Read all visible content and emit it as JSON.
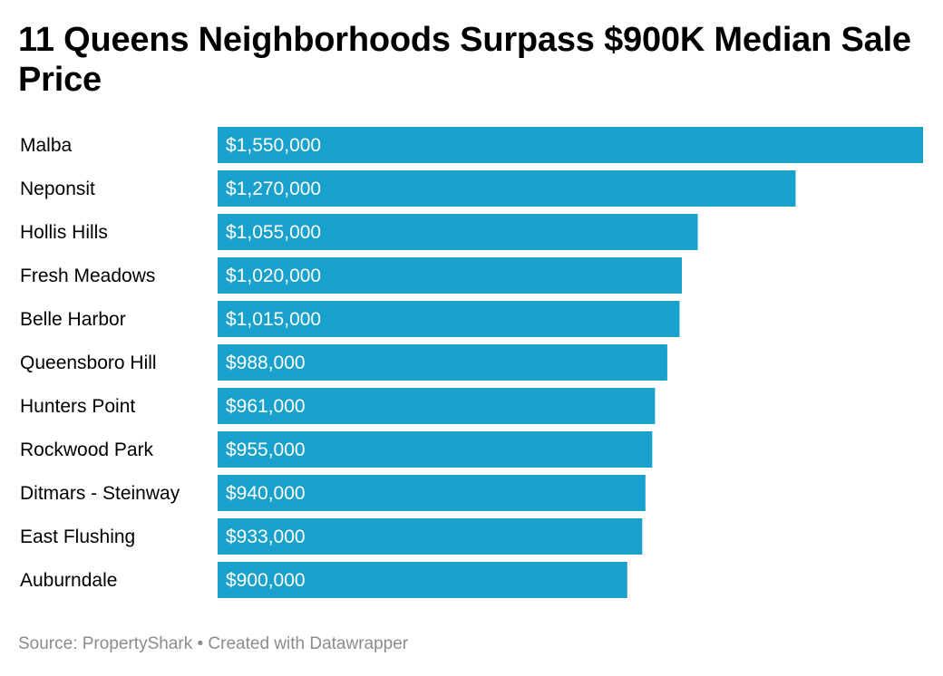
{
  "header": {
    "title": "11 Queens Neighborhoods Surpass $900K Median Sale Price"
  },
  "footer": {
    "source": "Source: PropertyShark",
    "separator": " • ",
    "credit": "Created with Datawrapper"
  },
  "colors": {
    "bar": "#18a1cd",
    "label": "#000000",
    "value_label": "#ffffff",
    "footer": "#8c8c8c"
  },
  "chart_data": {
    "type": "bar",
    "orientation": "horizontal",
    "categories": [
      "Malba",
      "Neponsit",
      "Hollis Hills",
      "Fresh Meadows",
      "Belle Harbor",
      "Queensboro Hill",
      "Hunters Point",
      "Rockwood Park",
      "Ditmars - Steinway",
      "East Flushing",
      "Auburndale"
    ],
    "values": [
      1550000,
      1270000,
      1055000,
      1020000,
      1015000,
      988000,
      961000,
      955000,
      940000,
      933000,
      900000
    ],
    "value_labels": [
      "$1,550,000",
      "$1,270,000",
      "$1,055,000",
      "$1,020,000",
      "$1,015,000",
      "$988,000",
      "$961,000",
      "$955,000",
      "$940,000",
      "$933,000",
      "$900,000"
    ],
    "xlim": [
      0,
      1550000
    ],
    "grid": false,
    "legend": "none"
  }
}
